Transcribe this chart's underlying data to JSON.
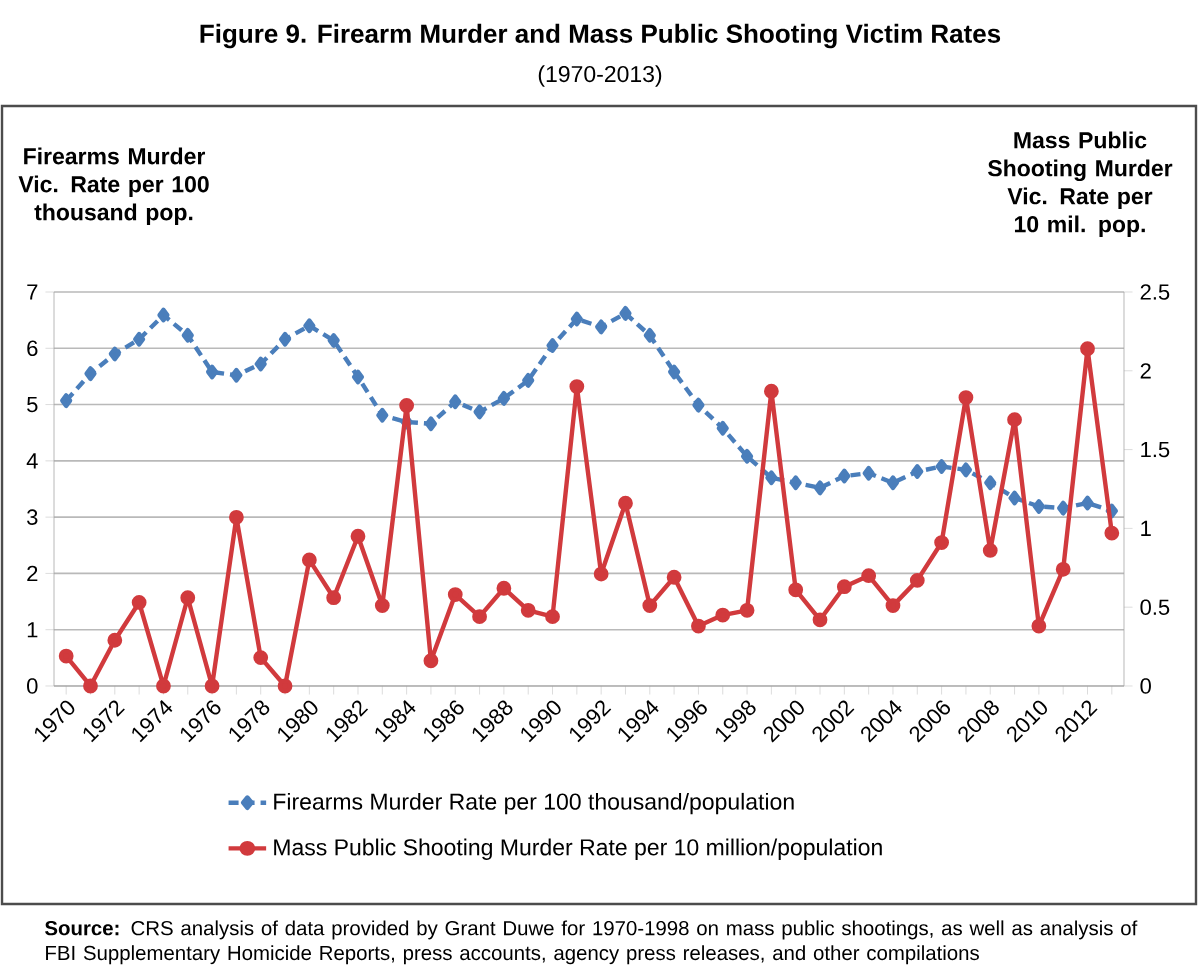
{
  "chart_data": {
    "type": "line",
    "title": "Figure 9. Firearm Murder and Mass Public Shooting Victim Rates",
    "subtitle": "(1970-2013)",
    "ylabel": "Firearms Murder Vic. Rate per 100 thousand pop.",
    "y2label": "Mass Public Shooting Murder Vic. Rate per 10 mil. pop.",
    "categories": [
      "1970",
      null,
      "1972",
      null,
      "1974",
      null,
      "1976",
      null,
      "1978",
      null,
      "1980",
      null,
      "1982",
      null,
      "1984",
      null,
      "1986",
      null,
      "1988",
      null,
      "1990",
      null,
      "1992",
      null,
      "1994",
      null,
      "1996",
      null,
      "1998",
      null,
      "2000",
      null,
      "2002",
      null,
      "2004",
      null,
      "2006",
      null,
      "2008",
      null,
      "2010",
      null,
      "2012",
      null
    ],
    "series": [
      {
        "name": "Firearms Murder Rate per 100 thousand/population",
        "color": "#4a7ebb",
        "marker": "diamond",
        "line_style": "dashed",
        "values": [
          5.07,
          5.55,
          5.9,
          6.16,
          6.59,
          6.23,
          5.58,
          5.52,
          5.72,
          6.16,
          6.4,
          6.14,
          5.49,
          4.81,
          4.69,
          4.66,
          5.05,
          4.87,
          5.11,
          5.43,
          6.05,
          6.52,
          6.38,
          6.62,
          6.23,
          5.58,
          4.99,
          4.58,
          4.08,
          3.7,
          3.61,
          3.52,
          3.73,
          3.78,
          3.61,
          3.81,
          3.9,
          3.84,
          3.61,
          3.34,
          3.19,
          3.16,
          3.25,
          3.11
        ]
      },
      {
        "name": "Mass Public Shooting Murder Rate per 10 million/population",
        "color": "#d13a3d",
        "marker": "circle",
        "line_style": "solid",
        "axis": "y2",
        "values": [
          0.19,
          0,
          0.29,
          0.53,
          0,
          0.56,
          0,
          1.07,
          0.18,
          0,
          0.8,
          0.56,
          0.95,
          0.51,
          1.78,
          0.16,
          0.58,
          0.44,
          0.62,
          0.48,
          0.44,
          1.9,
          0.71,
          1.16,
          0.51,
          0.69,
          0.38,
          0.45,
          0.48,
          1.87,
          0.61,
          0.42,
          0.63,
          0.7,
          0.51,
          0.67,
          0.91,
          1.83,
          0.86,
          1.69,
          0.38,
          0.74,
          2.14,
          0.97
        ]
      }
    ],
    "ylim": [
      0,
      7
    ],
    "yticks": [
      0,
      1,
      2,
      3,
      4,
      5,
      6,
      7
    ],
    "y2lim": [
      0,
      2.5
    ],
    "y2ticks": [
      0,
      0.5,
      1,
      1.5,
      2,
      2.5
    ],
    "grid": "y",
    "legend": "bottom",
    "annotations": [
      "**Source:** CRS analysis of data provided by Grant Duwe for 1970-1998 on mass public shootings, as well as analysis of FBI Supplementary Homicide Reports, press accounts, agency press releases, and other compilations"
    ]
  }
}
